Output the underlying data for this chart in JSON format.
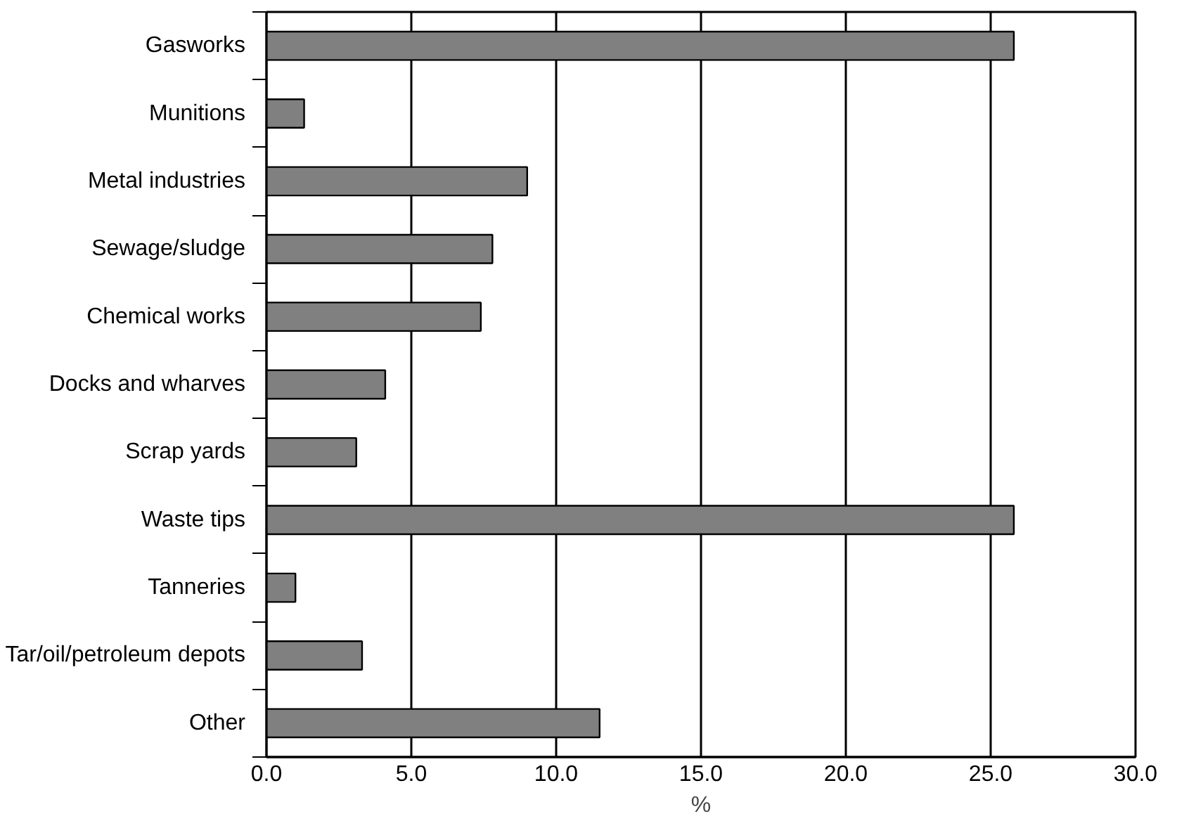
{
  "chart_data": {
    "type": "bar",
    "orientation": "horizontal",
    "xlabel": "%",
    "categories": [
      "Gasworks",
      "Munitions",
      "Metal industries",
      "Sewage/sludge",
      "Chemical works",
      "Docks and wharves",
      "Scrap yards",
      "Waste tips",
      "Tanneries",
      "Tar/oil/petroleum depots",
      "Other"
    ],
    "values": [
      25.8,
      1.3,
      9.0,
      7.8,
      7.4,
      4.1,
      3.1,
      25.8,
      1.0,
      3.3,
      11.5
    ],
    "color": "#808080",
    "xlim": [
      0,
      30
    ],
    "xticks": [
      {
        "value": 0,
        "label": "0.0"
      },
      {
        "value": 5,
        "label": "5.0"
      },
      {
        "value": 10,
        "label": "10.0"
      },
      {
        "value": 15,
        "label": "15.0"
      },
      {
        "value": 20,
        "label": "20.0"
      },
      {
        "value": 25,
        "label": "25.0"
      },
      {
        "value": 30,
        "label": "30.0"
      }
    ],
    "grid": "x"
  }
}
